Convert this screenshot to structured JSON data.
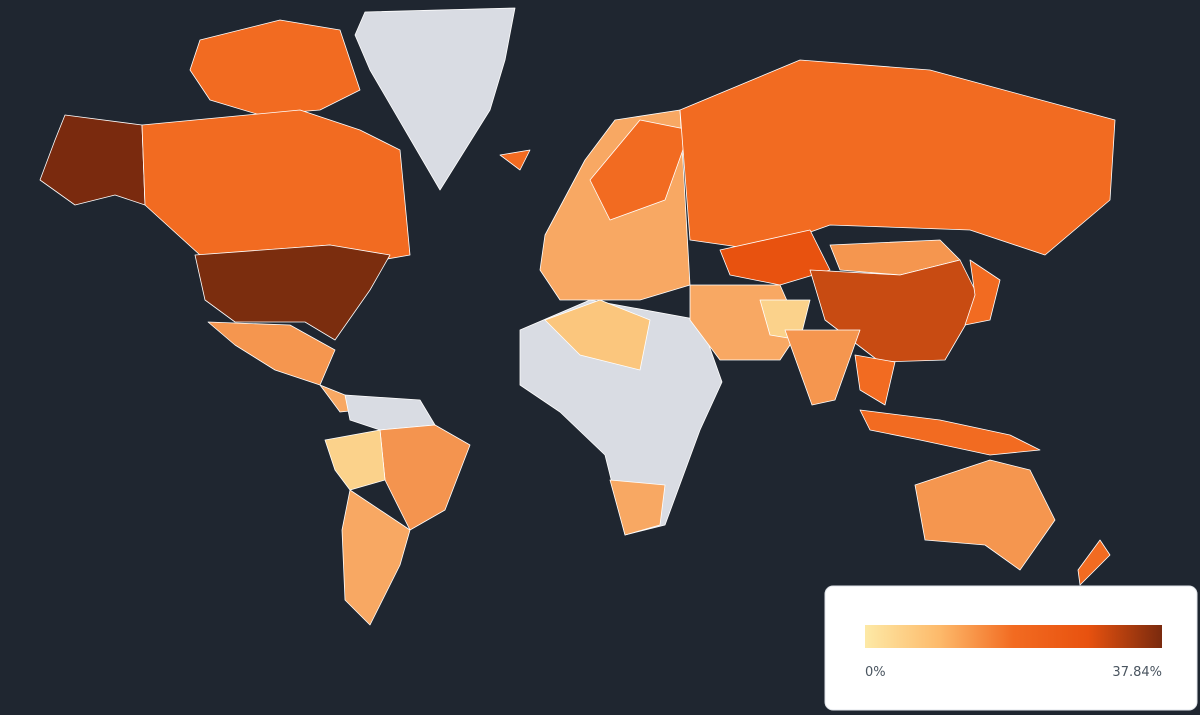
{
  "legend": {
    "min_label": "0%",
    "max_label": "37.84%",
    "colors": [
      "#fde9a6",
      "#fdba6b",
      "#f26b21",
      "#e8520f",
      "#7a2a0e"
    ]
  }
}
